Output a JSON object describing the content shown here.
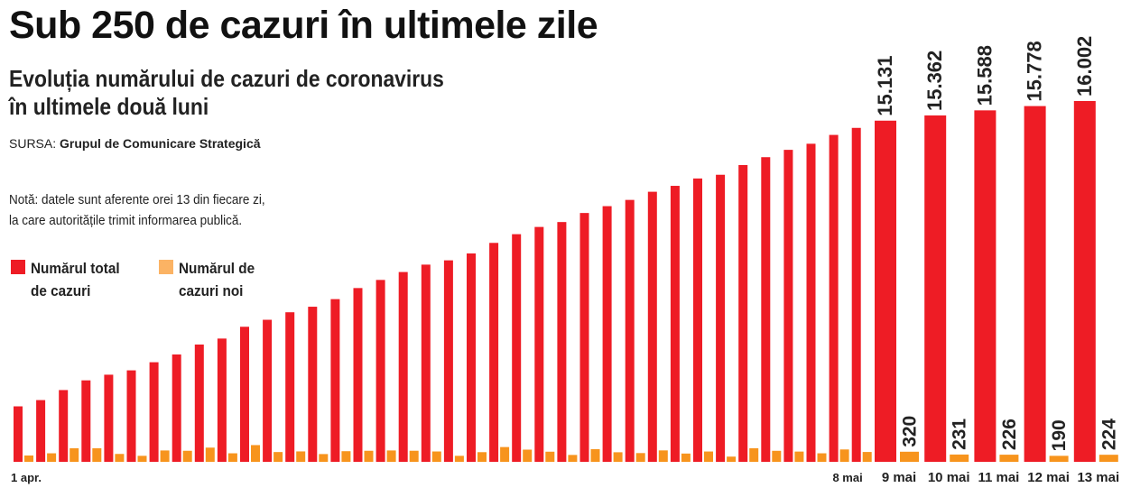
{
  "title": "Sub 250 de cazuri în ultimele zile",
  "subtitle_line1": "Evoluția numărului de cazuri de coronavirus",
  "subtitle_line2": "în ultimele două luni",
  "source_label": "SURSA:",
  "source_name": "Grupul de Comunicare Strategică",
  "note_line1": "Notă: datele sunt aferente orei 13 din fiecare zi,",
  "note_line2": "la care autoritățile trimit informarea publică.",
  "legend": {
    "total_label": "Numărul total\nde cazuri",
    "new_label": "Numărul de\ncazuri noi"
  },
  "colors": {
    "total": "#ee1c25",
    "new": "#f7941d",
    "legend_new": "#fbb364"
  },
  "chart_data": {
    "type": "bar",
    "series": [
      {
        "name": "Numărul total de cazuri",
        "values": [
          2460,
          2738,
          3183,
          3613,
          3864,
          4057,
          4417,
          4761,
          5202,
          5467,
          5990,
          6300,
          6633,
          6879,
          7216,
          7707,
          8067,
          8418,
          8746,
          8936,
          9242,
          9710,
          10096,
          10417,
          10635,
          11036,
          11339,
          11616,
          11978,
          12240,
          12567,
          12732,
          13163,
          13512,
          13837,
          14107,
          14499,
          14811,
          15131,
          15362,
          15588,
          15778,
          16002
        ],
        "labels": [
          "",
          "",
          "",
          "",
          "",
          "",
          "",
          "",
          "",
          "",
          "",
          "",
          "",
          "",
          "",
          "",
          "",
          "",
          "",
          "",
          "",
          "",
          "",
          "",
          "",
          "",
          "",
          "",
          "",
          "",
          "",
          "",
          "",
          "",
          "",
          "",
          "",
          "",
          "15.131",
          "15.362",
          "15.588",
          "15.778",
          "16.002"
        ]
      },
      {
        "name": "Numărul de cazuri noi",
        "values": [
          200,
          270,
          430,
          430,
          250,
          190,
          360,
          350,
          450,
          270,
          530,
          310,
          330,
          246,
          337,
          350,
          360,
          351,
          328,
          190,
          306,
          468,
          386,
          321,
          218,
          401,
          303,
          277,
          362,
          262,
          327,
          165,
          431,
          349,
          325,
          270,
          392,
          312,
          320,
          231,
          226,
          190,
          224
        ],
        "labels": [
          "",
          "",
          "",
          "",
          "",
          "",
          "",
          "",
          "",
          "",
          "",
          "",
          "",
          "",
          "",
          "",
          "",
          "",
          "",
          "",
          "",
          "",
          "",
          "",
          "",
          "",
          "",
          "",
          "",
          "",
          "",
          "",
          "",
          "",
          "",
          "",
          "",
          "",
          "320",
          "231",
          "226",
          "190",
          "224"
        ]
      }
    ],
    "x_labels": [
      "1 apr.",
      "",
      "",
      "",
      "",
      "",
      "",
      "",
      "",
      "",
      "",
      "",
      "",
      "",
      "",
      "",
      "",
      "",
      "",
      "",
      "",
      "",
      "",
      "",
      "",
      "",
      "",
      "",
      "",
      "",
      "",
      "",
      "",
      "",
      "",
      "",
      "",
      "8 mai",
      "9 mai",
      "10 mai",
      "11 mai",
      "12 mai",
      "13 mai"
    ],
    "ylim": [
      0,
      17500
    ]
  }
}
